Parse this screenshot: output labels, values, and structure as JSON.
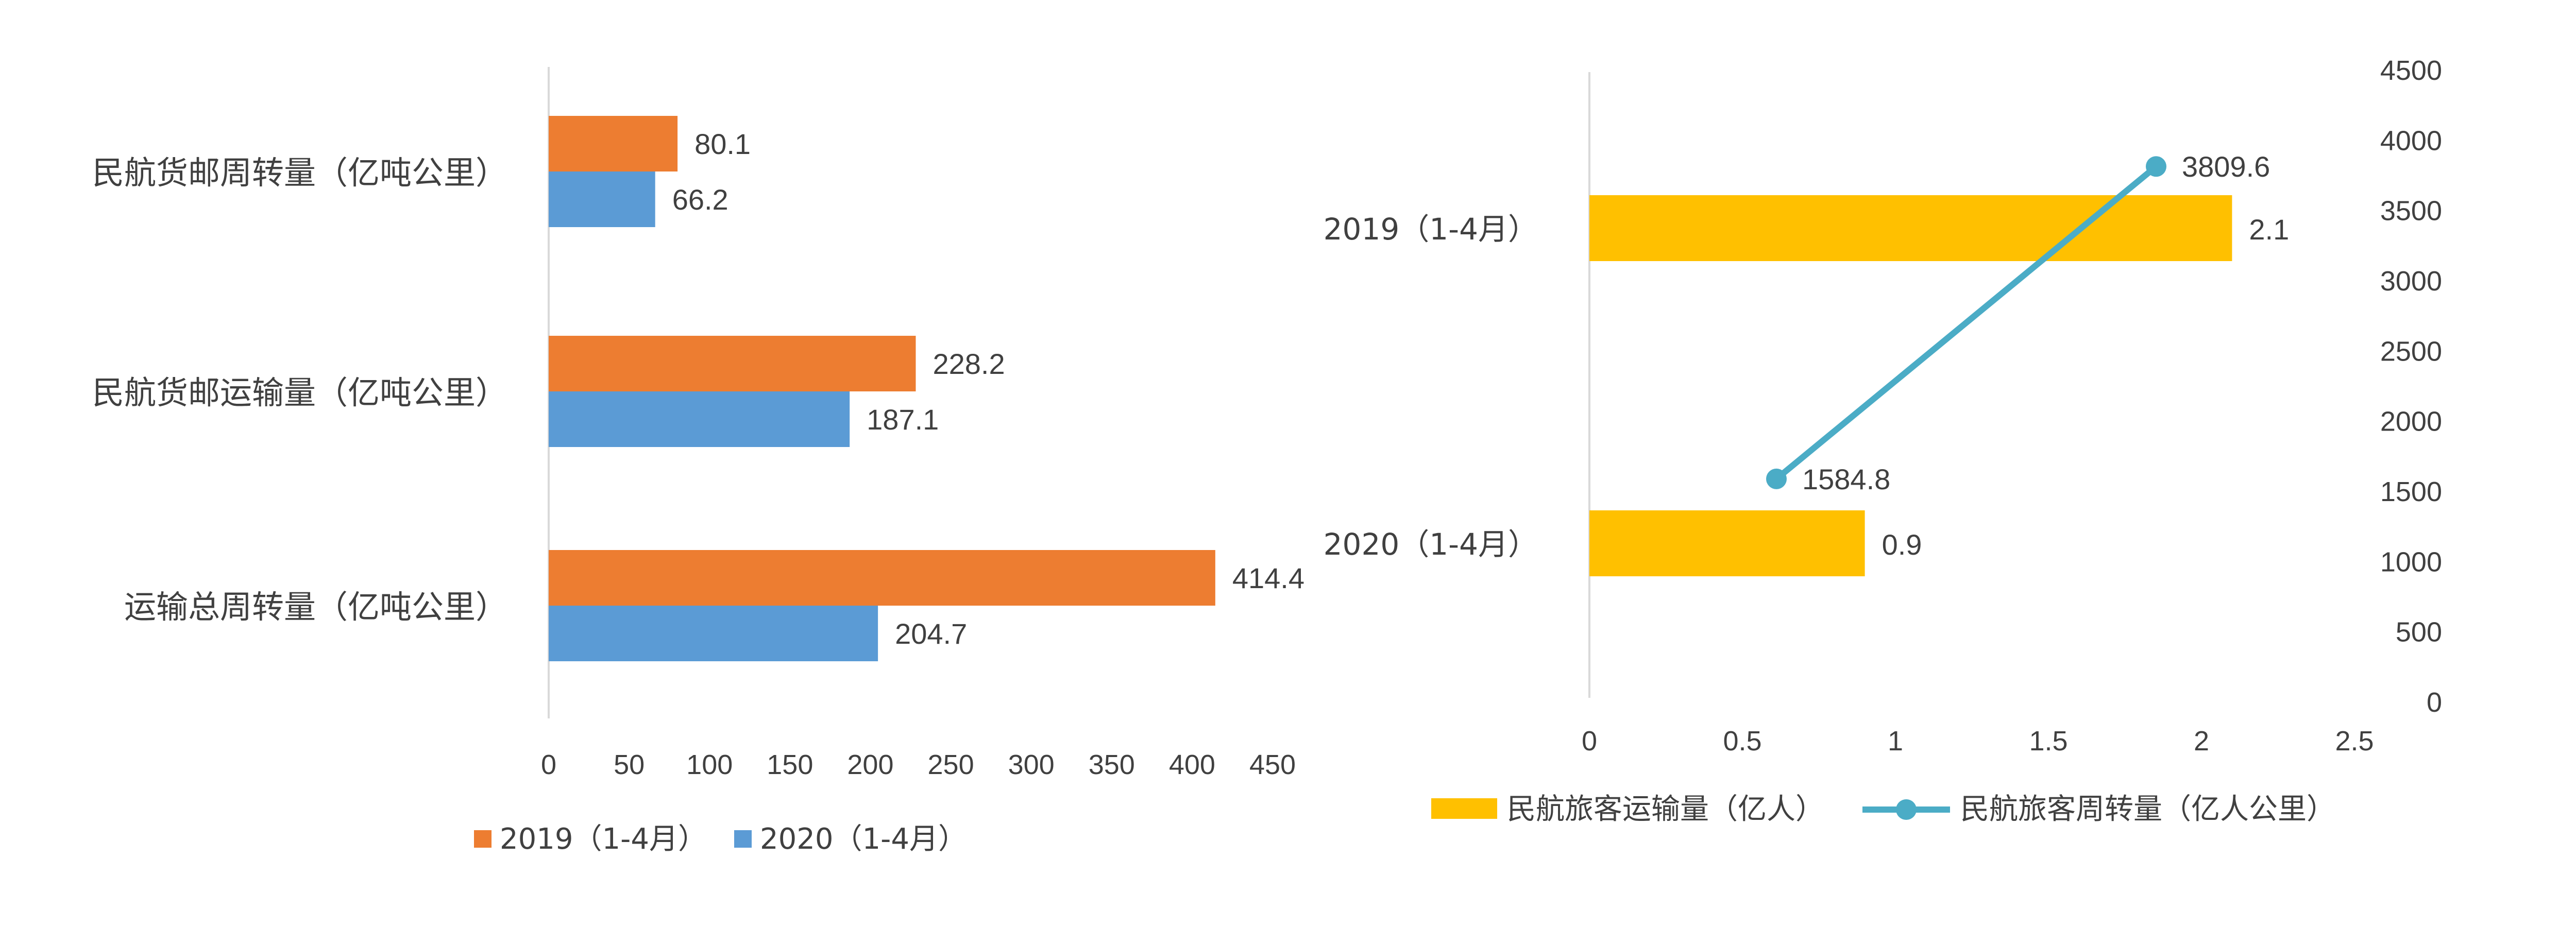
{
  "chart_data": [
    {
      "type": "bar",
      "orientation": "horizontal",
      "categories": [
        "民航货邮周转量（亿吨公里）",
        "民航货邮运输量（亿吨公里）",
        "运输总周转量（亿吨公里）"
      ],
      "series": [
        {
          "name": "2019（1-4月）",
          "values": [
            80.1,
            228.2,
            414.4
          ],
          "color": "#ED7D31"
        },
        {
          "name": "2020（1-4月）",
          "values": [
            66.2,
            187.1,
            204.7
          ],
          "color": "#5B9BD5"
        }
      ],
      "xlim": [
        0,
        450
      ],
      "xticks": [
        "0",
        "50",
        "100",
        "150",
        "200",
        "250",
        "300",
        "350",
        "400",
        "450"
      ],
      "legend": "bottom",
      "grid": false
    },
    {
      "type": "bar+line",
      "categories": [
        "2019（1-4月）",
        "2020（1-4月）"
      ],
      "bar_series": {
        "name": "民航旅客运输量（亿人）",
        "values": [
          2.1,
          0.9
        ],
        "labels": [
          "2.1",
          "0.9"
        ],
        "color": "#FFC000",
        "axis": "bottom"
      },
      "line_series": {
        "name": "民航旅客周转量（亿人公里）",
        "values": [
          3809.6,
          1584.8
        ],
        "labels": [
          "3809.6",
          "1584.8"
        ],
        "color": "#4BACC6",
        "axis": "right"
      },
      "xlim": [
        0,
        2.5
      ],
      "xticks": [
        "0",
        "0.5",
        "1",
        "1.5",
        "2",
        "2.5"
      ],
      "y2lim": [
        0,
        4500
      ],
      "y2ticks": [
        "0",
        "500",
        "1000",
        "1500",
        "2000",
        "2500",
        "3000",
        "3500",
        "4000",
        "4500"
      ],
      "legend": "bottom",
      "grid": false
    }
  ]
}
